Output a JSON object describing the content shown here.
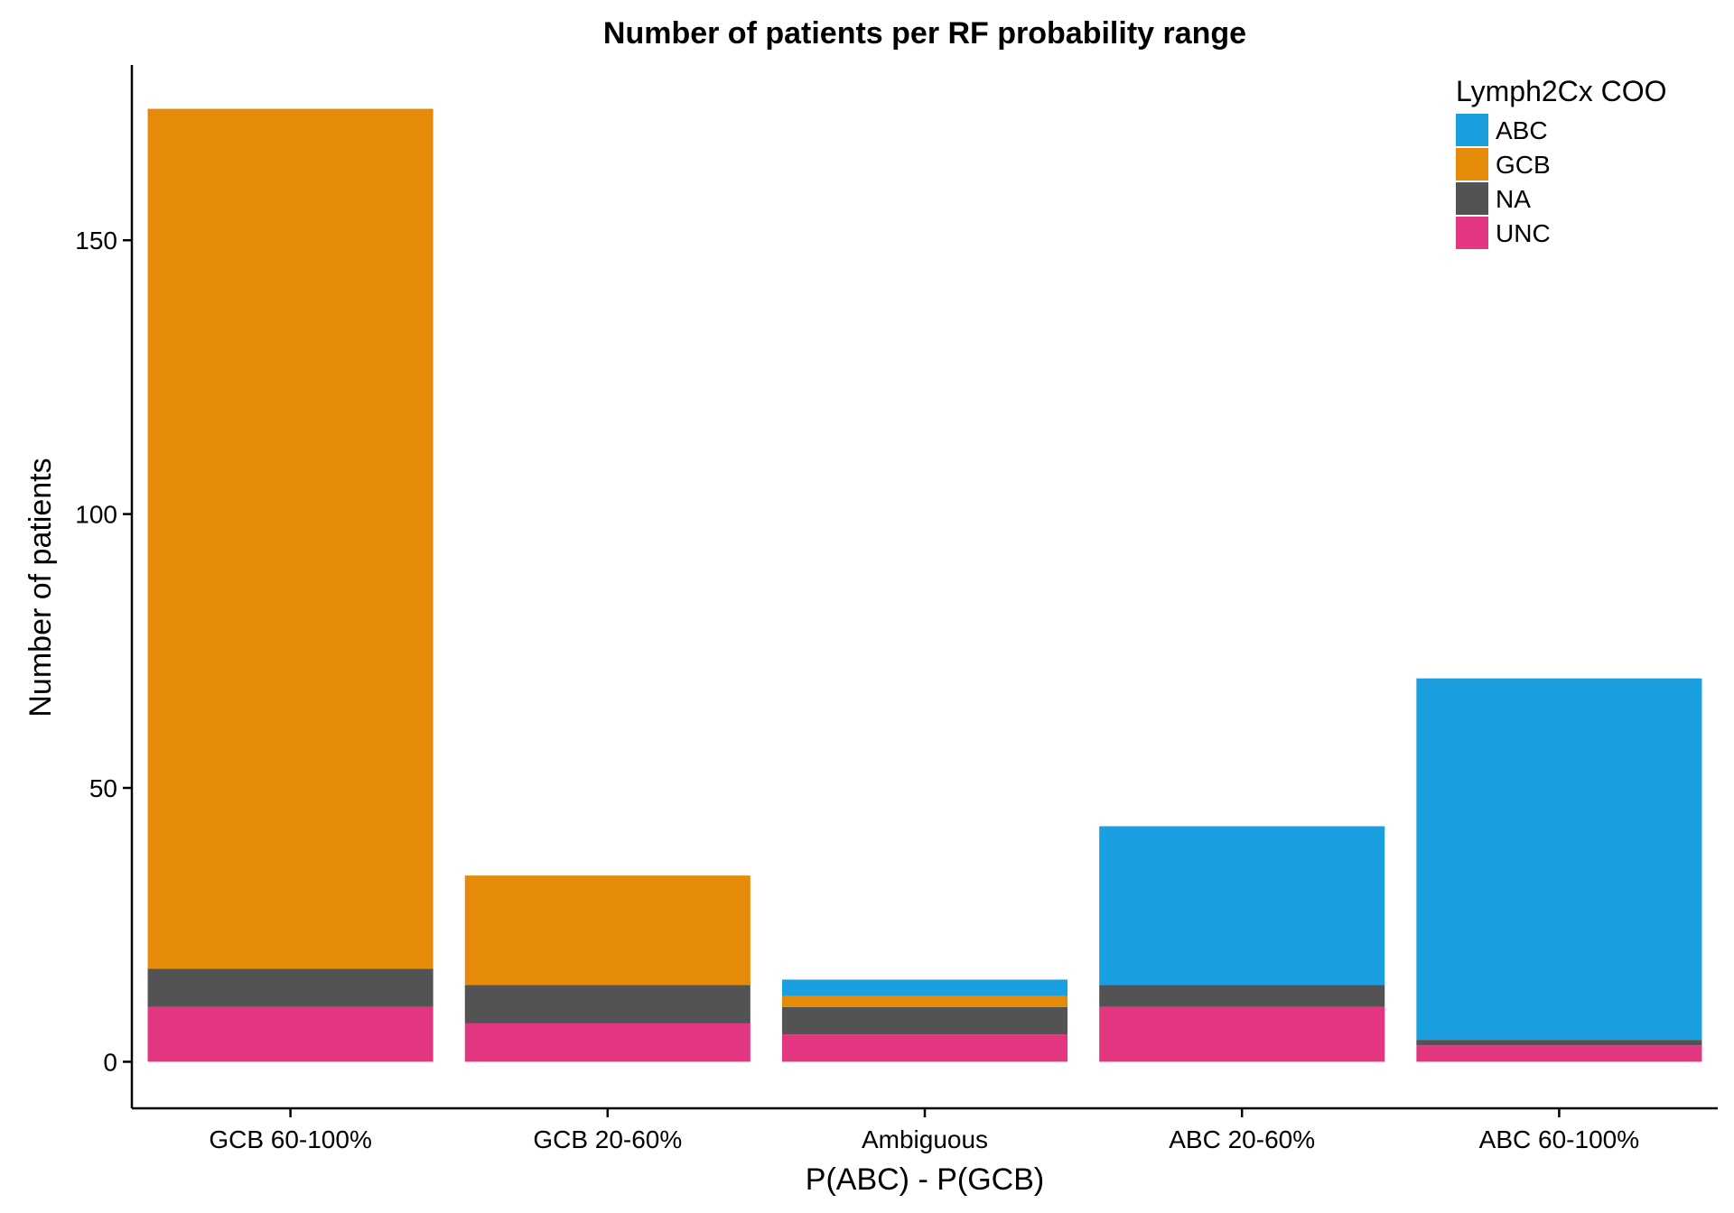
{
  "chart_data": {
    "type": "bar",
    "stacked": true,
    "title": "Number of patients per RF probability range",
    "xlabel": "P(ABC) - P(GCB)",
    "ylabel": "Number of patients",
    "categories": [
      "GCB 60-100%",
      "GCB 20-60%",
      "Ambiguous",
      "ABC 20-60%",
      "ABC 60-100%"
    ],
    "ylim": [
      -8.5,
      182
    ],
    "yticks": [
      0,
      50,
      100,
      150
    ],
    "grid": false,
    "legend": {
      "title": "Lymph2Cx COO",
      "position": "top-right"
    },
    "stack_order": [
      "UNC",
      "NA",
      "GCB",
      "ABC"
    ],
    "series": [
      {
        "name": "ABC",
        "color": "#1a9fe0",
        "values": [
          0,
          0,
          3,
          29,
          66
        ]
      },
      {
        "name": "GCB",
        "color": "#e68a0a",
        "values": [
          157,
          20,
          2,
          0,
          0
        ]
      },
      {
        "name": "NA",
        "color": "#535353",
        "values": [
          7,
          7,
          5,
          4,
          1
        ]
      },
      {
        "name": "UNC",
        "color": "#e23780",
        "values": [
          10,
          7,
          5,
          10,
          3
        ]
      }
    ]
  }
}
